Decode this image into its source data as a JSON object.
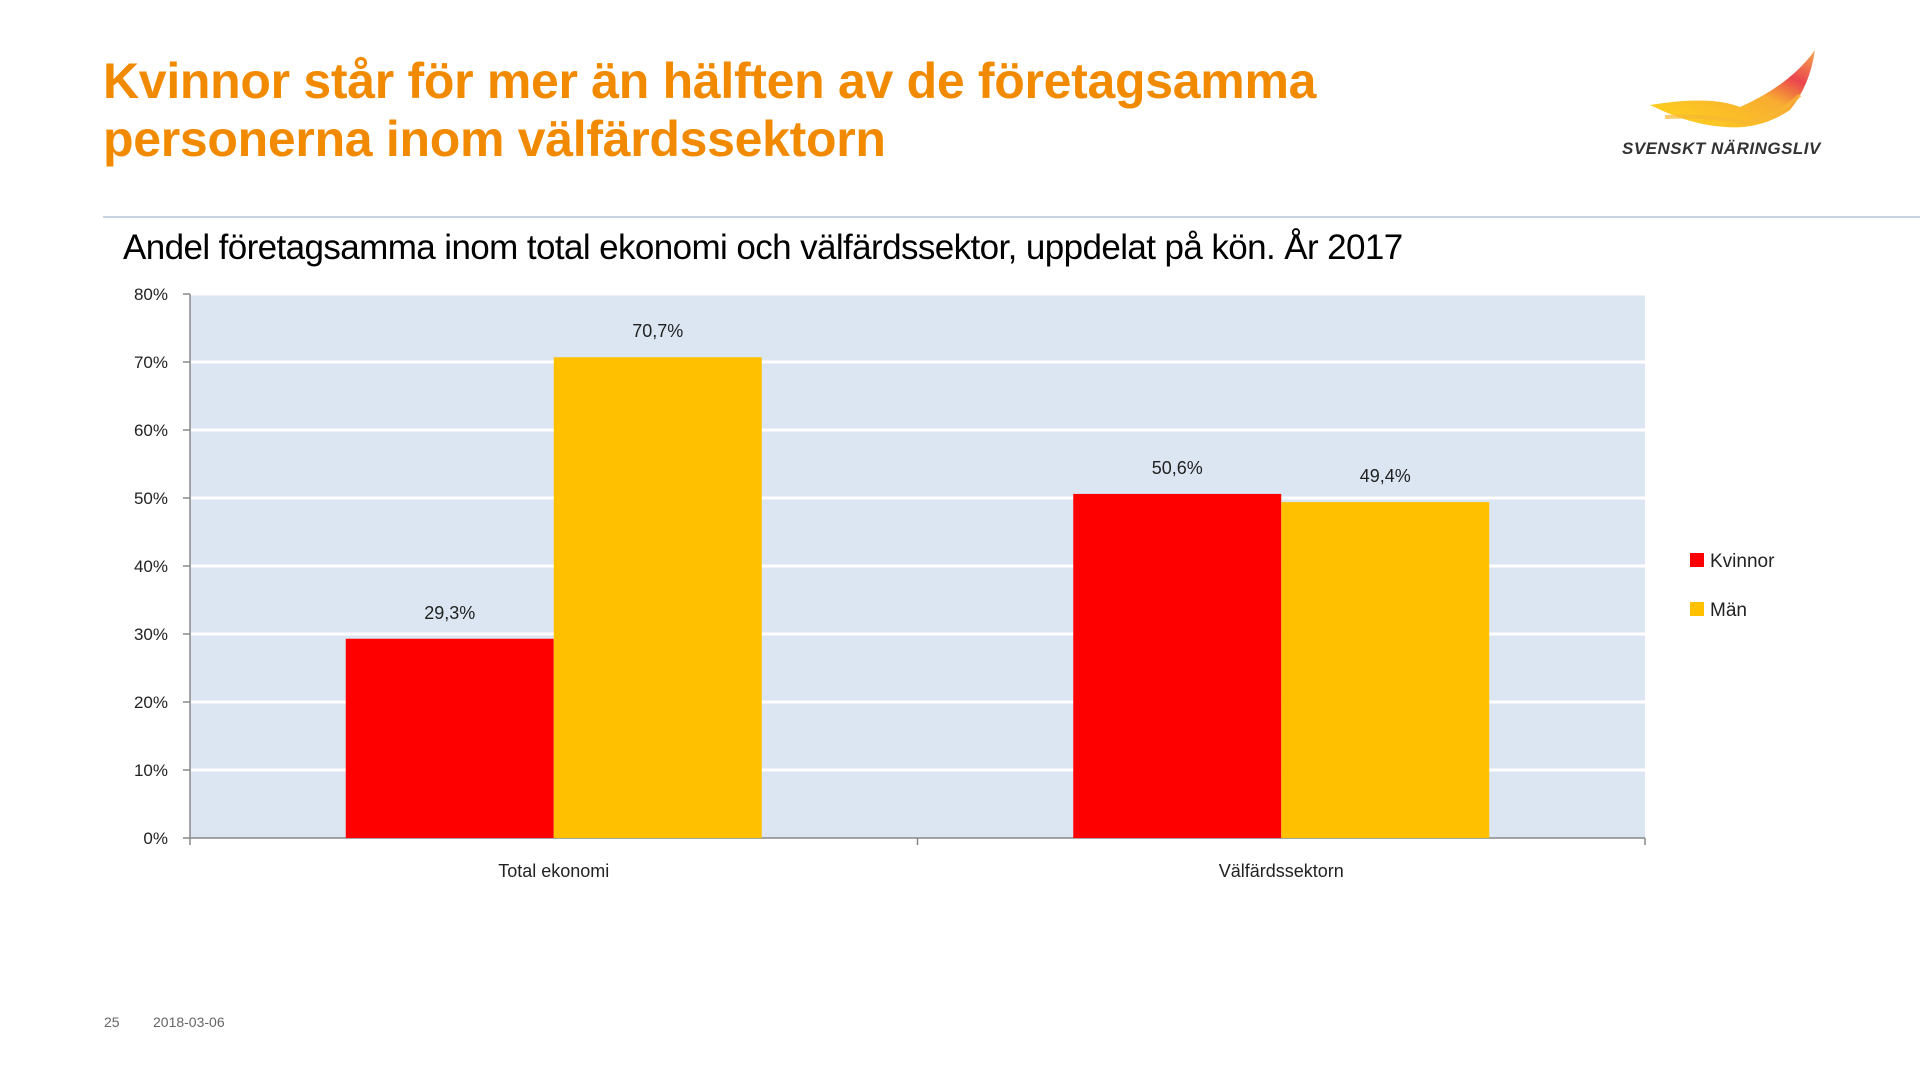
{
  "slide": {
    "title_line1": "Kvinnor står för mer än hälften av de företagsamma",
    "title_line2": "personerna inom välfärdssektorn",
    "logo_text": "SVENSKT NÄRINGSLIV",
    "page_number": "25",
    "date": "2018-03-06",
    "title_color": "#F28A00"
  },
  "chart_data": {
    "type": "bar",
    "title": "Andel företagsamma inom total ekonomi och välfärdssektor, uppdelat på kön. År 2017",
    "categories": [
      "Total ekonomi",
      "Välfärdssektorn"
    ],
    "series": [
      {
        "name": "Kvinnor",
        "values": [
          29.3,
          50.6
        ],
        "labels": [
          "29,3%",
          "50,6%"
        ],
        "color": "#FF0000"
      },
      {
        "name": "Män",
        "values": [
          70.7,
          49.4
        ],
        "labels": [
          "70,7%",
          "49,4%"
        ],
        "color": "#FFC000"
      }
    ],
    "ylim": [
      0,
      80
    ],
    "yticks": [
      "0%",
      "10%",
      "20%",
      "30%",
      "40%",
      "50%",
      "60%",
      "70%",
      "80%"
    ],
    "grid": true,
    "plot_background": "#DCE6F2",
    "legend_position": "right"
  }
}
